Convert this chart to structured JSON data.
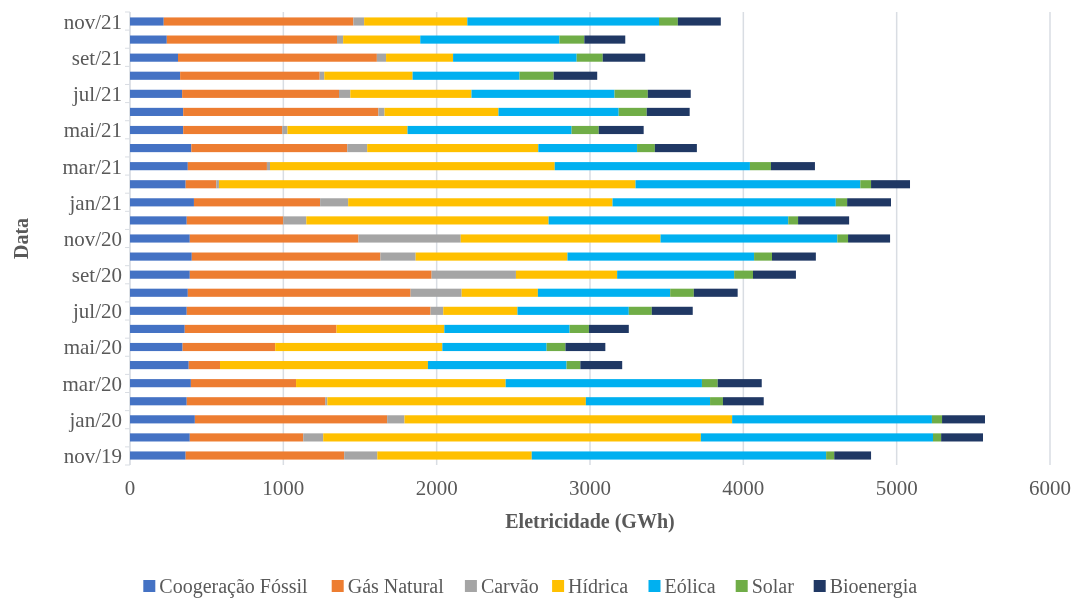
{
  "chart_data": {
    "type": "bar",
    "orientation": "horizontal",
    "stacked": true,
    "xlabel": "Eletricidade (GWh)",
    "ylabel": "Data",
    "categories": [
      "nov/21",
      null,
      "set/21",
      null,
      "jul/21",
      null,
      "mai/21",
      null,
      "mar/21",
      null,
      "jan/21",
      null,
      "nov/20",
      null,
      "set/20",
      null,
      "jul/20",
      null,
      "mai/20",
      null,
      "mar/20",
      null,
      "jan/20",
      null,
      "nov/19"
    ],
    "xlim": [
      0,
      6000
    ],
    "xticks": [
      0,
      1000,
      2000,
      3000,
      4000,
      5000,
      6000
    ],
    "grid": "x",
    "legend": "bottom",
    "series": [
      {
        "name": "Coogeração Fóssil",
        "color": "#4472c4",
        "values": [
          220,
          240,
          313,
          327,
          340,
          347,
          347,
          400,
          377,
          363,
          417,
          370,
          390,
          403,
          390,
          377,
          370,
          357,
          343,
          383,
          397,
          370,
          423,
          390,
          363
        ]
      },
      {
        "name": "Gás Natural",
        "color": "#ed7d31",
        "values": [
          1237,
          1110,
          1297,
          910,
          1023,
          1273,
          646,
          1017,
          516,
          200,
          823,
          630,
          1100,
          1230,
          1577,
          1453,
          1590,
          990,
          604,
          204,
          686,
          903,
          1254,
          740,
          1034
        ]
      },
      {
        "name": "Carvão",
        "color": "#a5a5a5",
        "values": [
          70,
          40,
          60,
          30,
          74,
          40,
          34,
          130,
          20,
          17,
          183,
          150,
          667,
          230,
          550,
          333,
          83,
          0,
          0,
          0,
          0,
          14,
          113,
          130,
          216
        ]
      },
      {
        "name": "Hídrica",
        "color": "#ffc000",
        "values": [
          673,
          503,
          437,
          576,
          790,
          743,
          783,
          1116,
          1857,
          2717,
          1724,
          1580,
          1303,
          990,
          660,
          497,
          484,
          703,
          1090,
          1356,
          1367,
          1686,
          2137,
          2463,
          1007
        ]
      },
      {
        "name": "Eólica",
        "color": "#00b0f0",
        "values": [
          1250,
          907,
          806,
          697,
          933,
          784,
          1070,
          644,
          1273,
          1466,
          1456,
          1563,
          1153,
          1217,
          763,
          863,
          726,
          817,
          680,
          904,
          1280,
          810,
          1303,
          1514,
          1920
        ]
      },
      {
        "name": "Solar",
        "color": "#70ad47",
        "values": [
          123,
          163,
          170,
          223,
          217,
          183,
          177,
          116,
          137,
          70,
          74,
          64,
          70,
          117,
          123,
          154,
          150,
          126,
          123,
          90,
          103,
          84,
          66,
          53,
          53
        ]
      },
      {
        "name": "Bioenergia",
        "color": "#203864",
        "values": [
          280,
          267,
          277,
          284,
          280,
          280,
          293,
          274,
          287,
          254,
          286,
          333,
          274,
          286,
          280,
          286,
          267,
          260,
          260,
          273,
          287,
          266,
          280,
          273,
          240
        ]
      }
    ]
  }
}
